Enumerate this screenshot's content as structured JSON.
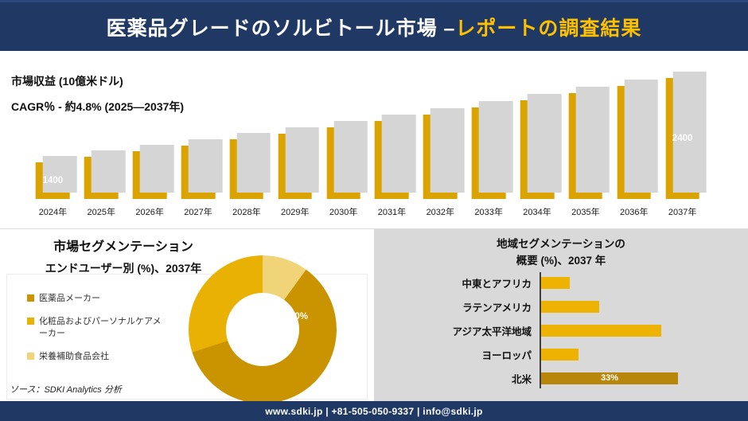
{
  "header": {
    "title_white": "医薬品グレードのソルビトール市場 –",
    "title_gold": "レポートの調査結果"
  },
  "revenue_section": {
    "metric_label": "市場収益 (10億米ドル)",
    "cagr_label": "CAGR％ - 約4.8% (2025―2037年)"
  },
  "segmentation_section": {
    "title": "市場セグメンテーション",
    "subtitle": "エンドユーザー別 (%)、2037年",
    "donut_label": "60%",
    "source": "ソース：SDKI Analytics 分析"
  },
  "region_section": {
    "title_line1": "地域セグメンテーションの",
    "title_line2": "概要 (%)、2037 年"
  },
  "footer": {
    "contact": "www.sdki.jp | +81-505-050-9337 | info@sdki.jp"
  },
  "colors": {
    "navy": "#203864",
    "accent_gold": "#ffc000",
    "bar_gold": "#dba300",
    "shadow_gray": "#d5d5d5",
    "panel_gray": "#d9d9d9"
  },
  "chart_data": [
    {
      "type": "bar",
      "title": "市場収益 (10億米ドル)",
      "subtitle": "CAGR％ - 約4.8% (2025―2037年)",
      "categories": [
        "2024年",
        "2025年",
        "2026年",
        "2027年",
        "2028年",
        "2029年",
        "2030年",
        "2031年",
        "2032年",
        "2033年",
        "2034年",
        "2035年",
        "2036年",
        "2037年"
      ],
      "values": [
        1400,
        1465,
        1530,
        1600,
        1670,
        1740,
        1815,
        1890,
        1970,
        2050,
        2135,
        2220,
        2310,
        2400
      ],
      "ylim": [
        1000,
        2500
      ],
      "bar_color": "#dba300",
      "data_labels": {
        "first": "1400",
        "last": "2400"
      }
    },
    {
      "type": "pie",
      "donut": true,
      "title": "市場セグメンテーション エンドユーザー別 (%)、2037年",
      "labels": [
        "医薬品メーカー",
        "化粧品およびパーソナルケアメーカー",
        "栄養補助食品会社"
      ],
      "values": [
        60,
        30,
        10
      ],
      "colors": [
        "#c99400",
        "#e9b104",
        "#f2d478"
      ],
      "visible_label": "60%",
      "legend_position": "left"
    },
    {
      "type": "bar",
      "orientation": "horizontal",
      "title": "地域セグメンテーションの概要 (%)、2037 年",
      "categories": [
        "中東とアフリカ",
        "ラテンアメリカ",
        "アジア太平洋地域",
        "ヨーロッパ",
        "北米"
      ],
      "values": [
        7,
        14,
        29,
        9,
        33
      ],
      "bar_color": "#eeb200",
      "highlight_color": "#b8860b",
      "highlight_index": 4,
      "visible_label": "33%",
      "xlim": [
        0,
        40
      ]
    }
  ]
}
